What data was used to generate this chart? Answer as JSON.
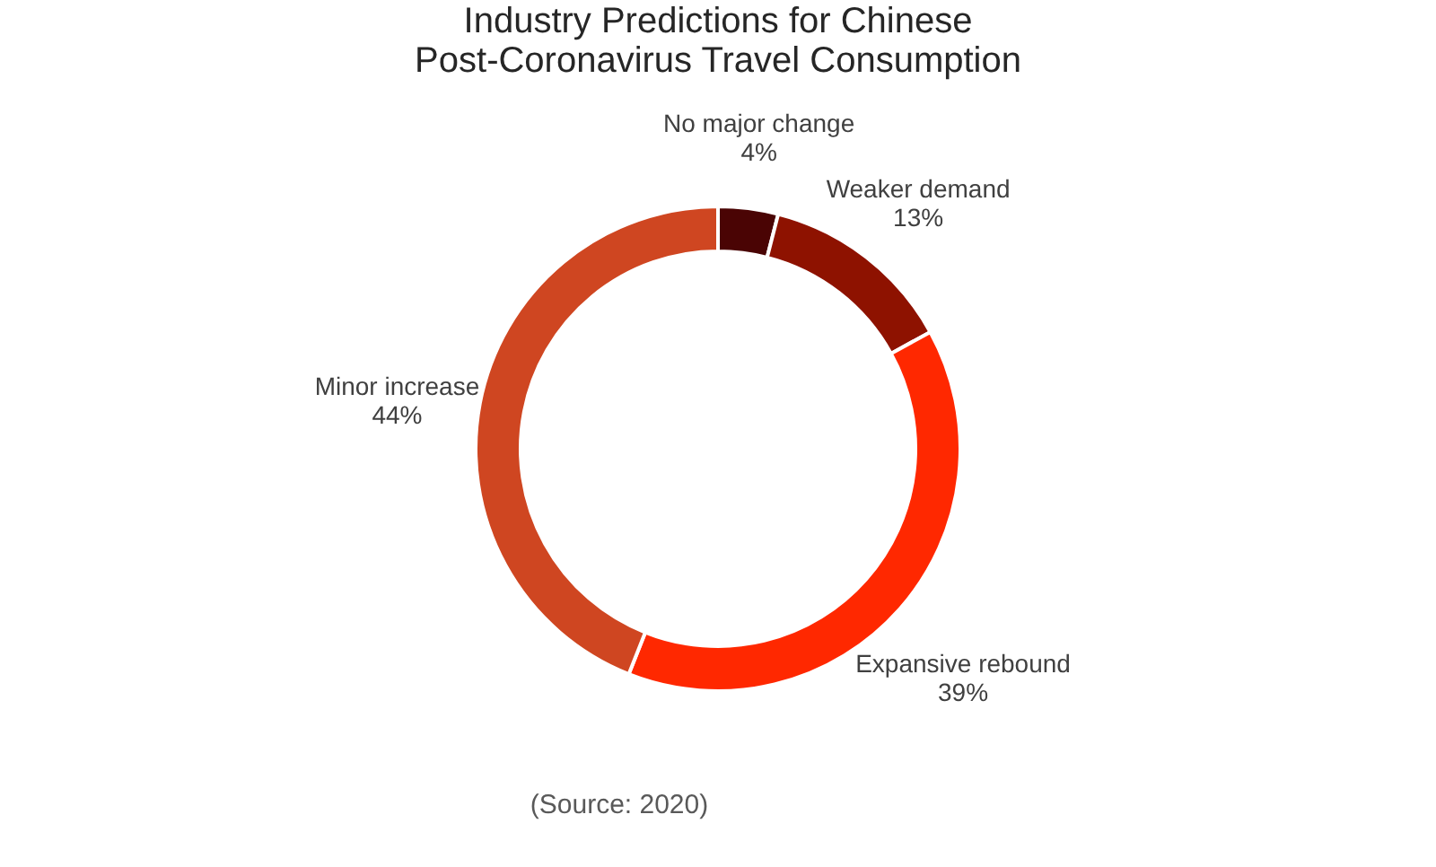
{
  "chart_data": {
    "type": "donut",
    "title": [
      "Industry Predictions for Chinese",
      "Post-Coronavirus Travel Consumption"
    ],
    "categories": [
      "No major change",
      "Weaker demand",
      "Expansive rebound",
      "Minor increase"
    ],
    "values": [
      4,
      13,
      39,
      44
    ],
    "colors": [
      "#4a0404",
      "#8e1200",
      "#ff2800",
      "#cf4621"
    ],
    "value_labels": [
      "4%",
      "13%",
      "39%",
      "44%"
    ],
    "annotations": [
      "(Source: 2020)"
    ],
    "legend": false
  }
}
